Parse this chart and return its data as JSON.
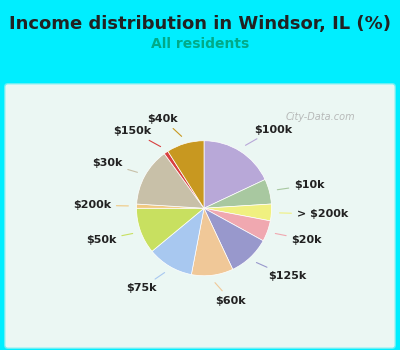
{
  "title": "Income distribution in Windsor, IL (%)",
  "subtitle": "All residents",
  "bg_cyan": "#00eeff",
  "bg_chart": "#e8f5ee",
  "watermark": "© City-Data.com",
  "slices": [
    {
      "label": "$100k",
      "value": 18,
      "color": "#b8a8d8"
    },
    {
      "label": "$10k",
      "value": 6,
      "color": "#a8c8a0"
    },
    {
      "label": "> $200k",
      "value": 4,
      "color": "#f0f080"
    },
    {
      "label": "$20k",
      "value": 5,
      "color": "#f0a8b0"
    },
    {
      "label": "$125k",
      "value": 10,
      "color": "#9898cc"
    },
    {
      "label": "$60k",
      "value": 10,
      "color": "#f0c898"
    },
    {
      "label": "$75k",
      "value": 11,
      "color": "#a8c8f0"
    },
    {
      "label": "$50k",
      "value": 11,
      "color": "#c8e060"
    },
    {
      "label": "$200k",
      "value": 1,
      "color": "#f0c880"
    },
    {
      "label": "$30k",
      "value": 14,
      "color": "#c8c0a8"
    },
    {
      "label": "$150k",
      "value": 1,
      "color": "#d84040"
    },
    {
      "label": "$40k",
      "value": 9,
      "color": "#c89820"
    }
  ],
  "title_fontsize": 13,
  "subtitle_fontsize": 10,
  "label_fontsize": 8,
  "startangle": 90
}
